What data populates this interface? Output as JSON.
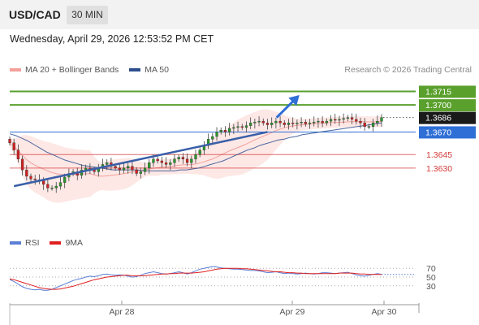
{
  "header": {
    "symbol": "USD/CAD",
    "timeframe": "30 MIN"
  },
  "datetime": "Wednesday, April 29, 2026 12:53:52 PM CET",
  "legend": [
    {
      "label": "MA 20 + Bollinger Bands",
      "color": "#f4a09a"
    },
    {
      "label": "MA 50",
      "color": "#2d4f8e"
    }
  ],
  "credit": "Research © 2026 Trading Central",
  "rsi_legend": [
    {
      "label": "RSI",
      "color": "#5b7fd6"
    },
    {
      "label": "9MA",
      "color": "#e02020"
    }
  ],
  "chart_data": [
    {
      "type": "candlestick",
      "title": "",
      "ylim": [
        1.3575,
        1.3728
      ],
      "x_ticks": [
        "Apr 28",
        "Apr 29",
        "Apr 30"
      ],
      "price_levels": [
        {
          "value": 1.3715,
          "label": "1.3715",
          "kind": "resistance",
          "color": "#5aa02c"
        },
        {
          "value": 1.37,
          "label": "1.3700",
          "kind": "resistance",
          "color": "#5aa02c"
        },
        {
          "value": 1.3686,
          "label": "1.3686",
          "kind": "last",
          "color": "#222222"
        },
        {
          "value": 1.367,
          "label": "1.3670",
          "kind": "pivot",
          "color": "#2f6fd6"
        },
        {
          "value": 1.3645,
          "label": "1.3645",
          "kind": "support",
          "color": "#d43a3a"
        },
        {
          "value": 1.363,
          "label": "1.3630",
          "kind": "support",
          "color": "#d43a3a"
        }
      ],
      "closes": [
        1.3658,
        1.365,
        1.364,
        1.3628,
        1.3621,
        1.3618,
        1.3617,
        1.3616,
        1.3612,
        1.3608,
        1.3608,
        1.361,
        1.3614,
        1.362,
        1.3624,
        1.3626,
        1.3622,
        1.3628,
        1.363,
        1.3628,
        1.3626,
        1.363,
        1.3634,
        1.3636,
        1.3632,
        1.363,
        1.3628,
        1.363,
        1.3632,
        1.3628,
        1.3624,
        1.3626,
        1.363,
        1.3636,
        1.364,
        1.3638,
        1.3636,
        1.3634,
        1.3636,
        1.364,
        1.3642,
        1.364,
        1.3636,
        1.364,
        1.3645,
        1.365,
        1.3655,
        1.3662,
        1.3665,
        1.367,
        1.3672,
        1.367,
        1.3674,
        1.3675,
        1.3676,
        1.3675,
        1.3677,
        1.368,
        1.3681,
        1.3682,
        1.368,
        1.3678,
        1.368,
        1.3682,
        1.368,
        1.3678,
        1.368,
        1.3679,
        1.368,
        1.3681,
        1.3679,
        1.368,
        1.3681,
        1.3682,
        1.368,
        1.3682,
        1.3684,
        1.3683,
        1.3684,
        1.3685,
        1.3686,
        1.3684,
        1.3682,
        1.368,
        1.3676,
        1.3676,
        1.368,
        1.3682,
        1.3686
      ],
      "ma50": [
        1.3668,
        1.3666,
        1.3663,
        1.366,
        1.3656,
        1.3652,
        1.3648,
        1.3645,
        1.3642,
        1.3639,
        1.3637,
        1.3635,
        1.3633,
        1.3632,
        1.3631,
        1.363,
        1.3629,
        1.3628,
        1.3628,
        1.3628,
        1.3628,
        1.3628,
        1.3627,
        1.3627,
        1.3627,
        1.3627,
        1.3627,
        1.3627,
        1.3628,
        1.3628,
        1.3629,
        1.363,
        1.3632,
        1.3634,
        1.3636,
        1.3638,
        1.3641,
        1.3644,
        1.3647,
        1.365,
        1.3652,
        1.3655,
        1.3657,
        1.3659,
        1.3661,
        1.3662,
        1.3664,
        1.3665,
        1.3667,
        1.3668,
        1.3669,
        1.367,
        1.3671,
        1.3672,
        1.3673,
        1.3674,
        1.3675,
        1.3676,
        1.3677,
        1.3678,
        1.3679,
        1.368
      ],
      "trendline": {
        "from": [
          1,
          1.361
        ],
        "to": [
          61,
          1.367
        ]
      },
      "target_arrow": {
        "from": [
          62,
          1.3686
        ],
        "to": [
          68,
          1.3712
        ]
      }
    },
    {
      "type": "line",
      "title": "RSI",
      "ylim": [
        0,
        100
      ],
      "y_ticks": [
        30,
        50,
        70
      ],
      "rsi": [
        44,
        40,
        34,
        28,
        24,
        22,
        21,
        22,
        20,
        20,
        22,
        26,
        30,
        34,
        38,
        42,
        45,
        47,
        50,
        52,
        51,
        53,
        56,
        57,
        55,
        54,
        55,
        54,
        52,
        50,
        51,
        54,
        58,
        60,
        62,
        60,
        58,
        57,
        58,
        60,
        62,
        60,
        57,
        60,
        64,
        68,
        70,
        72,
        74,
        73,
        71,
        70,
        69,
        68,
        68,
        67,
        66,
        65,
        65,
        64,
        62,
        60,
        61,
        62,
        60,
        58,
        59,
        58,
        57,
        58,
        59,
        58,
        57,
        58,
        60,
        60,
        59,
        58,
        59,
        60,
        61,
        58,
        55,
        53,
        52,
        54,
        56,
        58,
        56
      ],
      "ma9": [
        46,
        44,
        41,
        38,
        35,
        32,
        29,
        26,
        24,
        23,
        22,
        22,
        23,
        25,
        27,
        29,
        32,
        35,
        38,
        41,
        44,
        46,
        48,
        50,
        51,
        52,
        53,
        54,
        54,
        53,
        53,
        53,
        53,
        54,
        55,
        56,
        57,
        57,
        58,
        58,
        59,
        59,
        59,
        59,
        60,
        61,
        62,
        64,
        66,
        68,
        69,
        70,
        70,
        70,
        70,
        69,
        69,
        68,
        67,
        66,
        65,
        64,
        63,
        62,
        62,
        61,
        60,
        60,
        59,
        59,
        58,
        58,
        58,
        58,
        58,
        58,
        58,
        58,
        59,
        59,
        59,
        59,
        58,
        57,
        57,
        56,
        56,
        56,
        56
      ]
    }
  ]
}
